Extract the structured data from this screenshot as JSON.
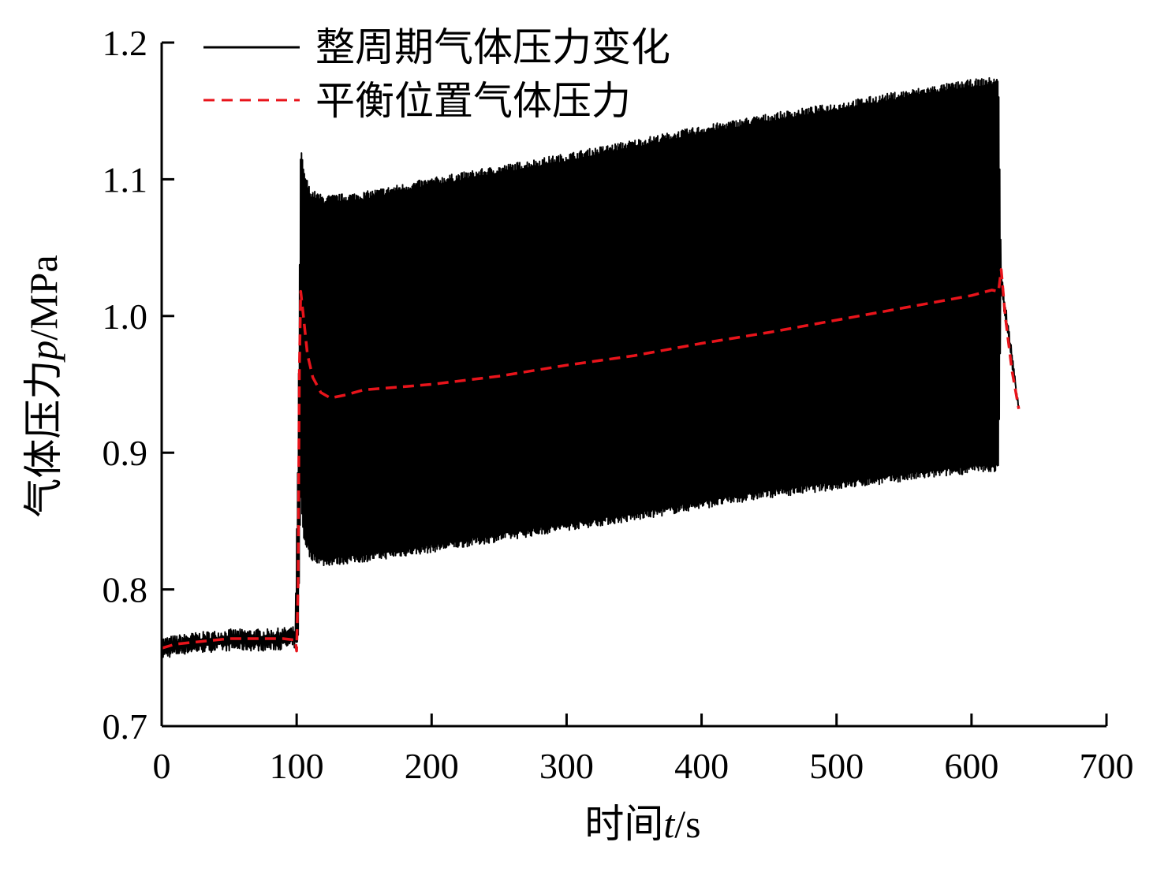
{
  "chart_data": {
    "type": "line",
    "title": "",
    "xlabel": "时间t/s",
    "ylabel": "气体压力p/MPa",
    "xlim": [
      0,
      700
    ],
    "ylim": [
      0.7,
      1.2
    ],
    "xticks": [
      0,
      100,
      200,
      300,
      400,
      500,
      600,
      700
    ],
    "yticks": [
      0.7,
      0.8,
      0.9,
      1.0,
      1.1,
      1.2
    ],
    "xtick_labels": [
      "0",
      "100",
      "200",
      "300",
      "400",
      "500",
      "600",
      "700"
    ],
    "ytick_labels": [
      "0.7",
      "0.8",
      "0.9",
      "1.0",
      "1.1",
      "1.2"
    ],
    "grid": false,
    "legend_position": "top-left",
    "series": [
      {
        "name": "整周期气体压力变化",
        "color": "#000000",
        "style": "solid",
        "note_envelope": true,
        "x": [
          0,
          20,
          50,
          80,
          99,
          101,
          103,
          105,
          110,
          120,
          150,
          200,
          250,
          300,
          350,
          400,
          450,
          500,
          550,
          600,
          620,
          622,
          635
        ],
        "upper": [
          0.762,
          0.765,
          0.768,
          0.768,
          0.77,
          0.9,
          1.125,
          1.105,
          1.09,
          1.085,
          1.088,
          1.098,
          1.107,
          1.116,
          1.126,
          1.136,
          1.145,
          1.153,
          1.162,
          1.17,
          1.172,
          1.03,
          0.935
        ],
        "lower": [
          0.752,
          0.756,
          0.758,
          0.758,
          0.76,
          0.76,
          0.87,
          0.84,
          0.825,
          0.82,
          0.823,
          0.83,
          0.838,
          0.846,
          0.853,
          0.862,
          0.87,
          0.876,
          0.882,
          0.888,
          0.889,
          1.02,
          0.932
        ]
      },
      {
        "name": "平衡位置气体压力",
        "color": "#e8141b",
        "style": "dashed",
        "x": [
          0,
          10,
          30,
          50,
          70,
          90,
          99,
          100,
          101,
          102,
          103,
          105,
          108,
          112,
          118,
          125,
          135,
          150,
          175,
          200,
          250,
          300,
          350,
          400,
          450,
          500,
          550,
          600,
          615,
          620,
          622,
          625,
          630,
          635
        ],
        "y": [
          0.757,
          0.76,
          0.762,
          0.764,
          0.764,
          0.764,
          0.763,
          0.755,
          0.8,
          0.96,
          1.018,
          1.0,
          0.972,
          0.955,
          0.944,
          0.94,
          0.942,
          0.946,
          0.948,
          0.95,
          0.956,
          0.964,
          0.971,
          0.98,
          0.988,
          0.997,
          1.006,
          1.015,
          1.019,
          1.018,
          1.034,
          1.0,
          0.96,
          0.932
        ]
      }
    ]
  }
}
